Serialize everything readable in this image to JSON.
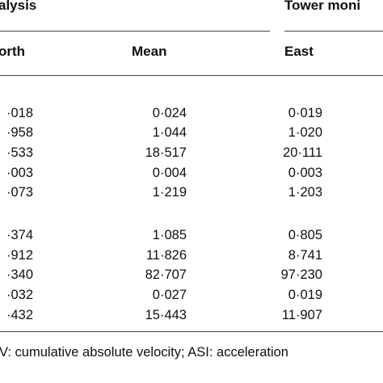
{
  "table": {
    "header_groups": [
      "alysis",
      "Tower moni"
    ],
    "columns": [
      "orth",
      "Mean",
      "East"
    ],
    "group1_rows": [
      [
        "·018",
        "0·024",
        "0·019"
      ],
      [
        "·958",
        "1·044",
        "1·020"
      ],
      [
        "·533",
        "18·517",
        "20·111"
      ],
      [
        "·003",
        "0·004",
        "0·003"
      ],
      [
        "·073",
        "1·219",
        "1·203"
      ]
    ],
    "group2_rows": [
      [
        "·374",
        "1·085",
        "0·805"
      ],
      [
        "·912",
        "11·826",
        "8·741"
      ],
      [
        "·340",
        "82·707",
        "97·230"
      ],
      [
        "·032",
        "0·027",
        "0·019"
      ],
      [
        "·432",
        "15·443",
        "11·907"
      ]
    ]
  },
  "footnote": "V: cumulative absolute velocity; ASI: acceleration"
}
